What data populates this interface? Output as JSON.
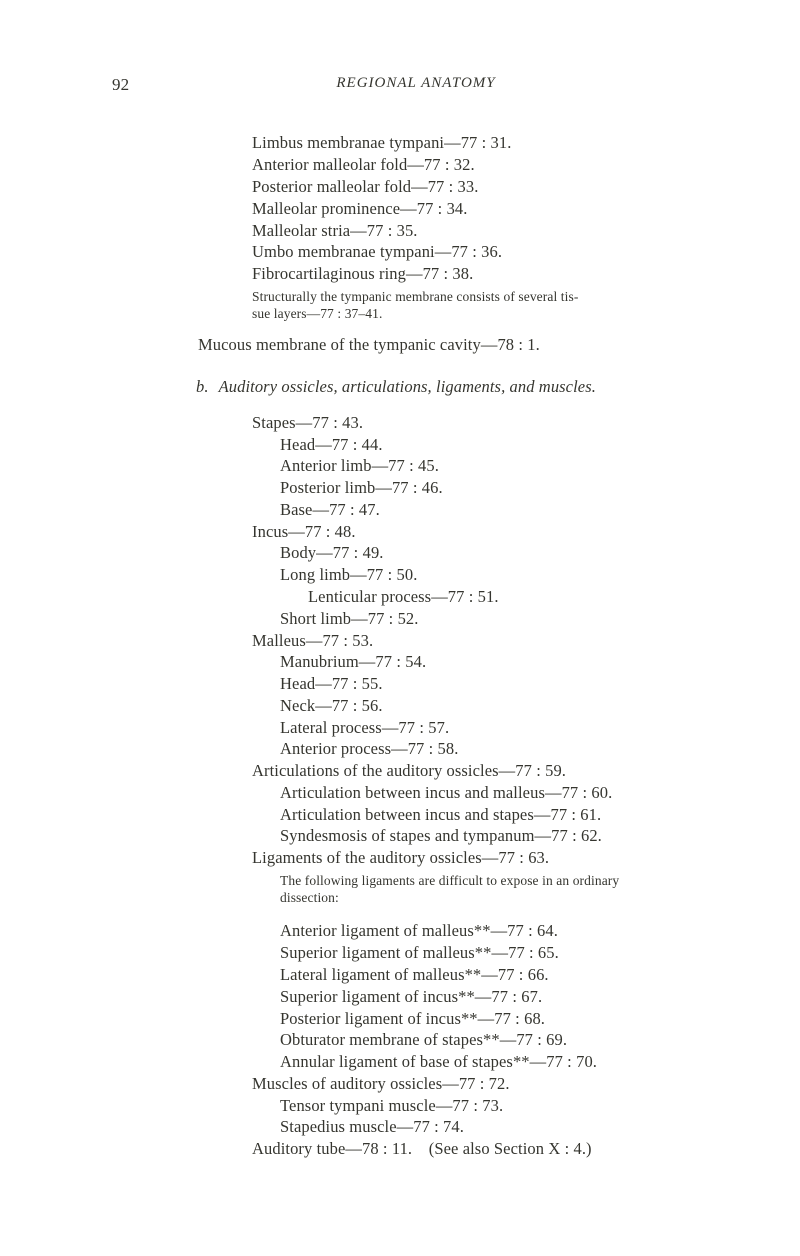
{
  "header": {
    "page_number": "92",
    "running_title": "REGIONAL ANATOMY"
  },
  "top_block": {
    "lines": [
      "Limbus membranae tympani—77 : 31.",
      "Anterior malleolar fold—77 : 32.",
      "Posterior malleolar fold—77 : 33.",
      "Malleolar prominence—77 : 34.",
      "Malleolar stria—77 : 35.",
      "Umbo membranae tympani—77 : 36.",
      "Fibrocartilaginous ring—77 : 38."
    ],
    "note_line1": "Structurally the tympanic membrane consists of several tis-",
    "note_line2": "sue layers—77 : 37–41."
  },
  "mucous_line": "Mucous membrane of the tympanic cavity—78 : 1.",
  "section_b": {
    "letter": "b.",
    "title": "Auditory ossicles, articulations, ligaments, and muscles.",
    "entries": [
      {
        "indent": 0,
        "text": "Stapes—77 : 43."
      },
      {
        "indent": 1,
        "text": "Head—77 : 44."
      },
      {
        "indent": 1,
        "text": "Anterior limb—77 : 45."
      },
      {
        "indent": 1,
        "text": "Posterior limb—77 : 46."
      },
      {
        "indent": 1,
        "text": "Base—77 : 47."
      },
      {
        "indent": 0,
        "text": "Incus—77 : 48."
      },
      {
        "indent": 1,
        "text": "Body—77 : 49."
      },
      {
        "indent": 1,
        "text": "Long limb—77 : 50."
      },
      {
        "indent": 2,
        "text": "Lenticular process—77 : 51."
      },
      {
        "indent": 1,
        "text": "Short limb—77 : 52."
      },
      {
        "indent": 0,
        "text": "Malleus—77 : 53."
      },
      {
        "indent": 1,
        "text": "Manubrium—77 : 54."
      },
      {
        "indent": 1,
        "text": "Head—77 : 55."
      },
      {
        "indent": 1,
        "text": "Neck—77 : 56."
      },
      {
        "indent": 1,
        "text": "Lateral process—77 : 57."
      },
      {
        "indent": 1,
        "text": "Anterior process—77 : 58."
      },
      {
        "indent": 0,
        "text": "Articulations of the auditory ossicles—77 : 59."
      },
      {
        "indent": 1,
        "text": "Articulation between incus and malleus—77 : 60."
      },
      {
        "indent": 1,
        "text": "Articulation between incus and stapes—77 : 61."
      },
      {
        "indent": 1,
        "text": "Syndesmosis of stapes and tympanum—77 : 62."
      },
      {
        "indent": 0,
        "text": "Ligaments of the auditory ossicles—77 : 63."
      }
    ],
    "lig_note_line1": "The following ligaments are difficult to expose in an ordinary",
    "lig_note_line2": "dissection:",
    "ligaments": [
      {
        "indent": 1,
        "text": "Anterior ligament of malleus**—77 : 64."
      },
      {
        "indent": 1,
        "text": "Superior ligament of malleus**—77 : 65."
      },
      {
        "indent": 1,
        "text": "Lateral ligament of malleus**—77 : 66."
      },
      {
        "indent": 1,
        "text": "Superior ligament of incus**—77 : 67."
      },
      {
        "indent": 1,
        "text": "Posterior ligament of incus**—77 : 68."
      },
      {
        "indent": 1,
        "text": "Obturator membrane of stapes**—77 : 69."
      },
      {
        "indent": 1,
        "text": "Annular ligament of base of stapes**—77 : 70."
      }
    ],
    "tail": [
      {
        "indent": 0,
        "text": "Muscles of auditory ossicles—77 : 72."
      },
      {
        "indent": 1,
        "text": "Tensor tympani muscle—77 : 73."
      },
      {
        "indent": 1,
        "text": "Stapedius muscle—77 : 74."
      },
      {
        "indent": 0,
        "text": "Auditory tube—78 : 11. (See also Section X : 4.)"
      }
    ]
  }
}
